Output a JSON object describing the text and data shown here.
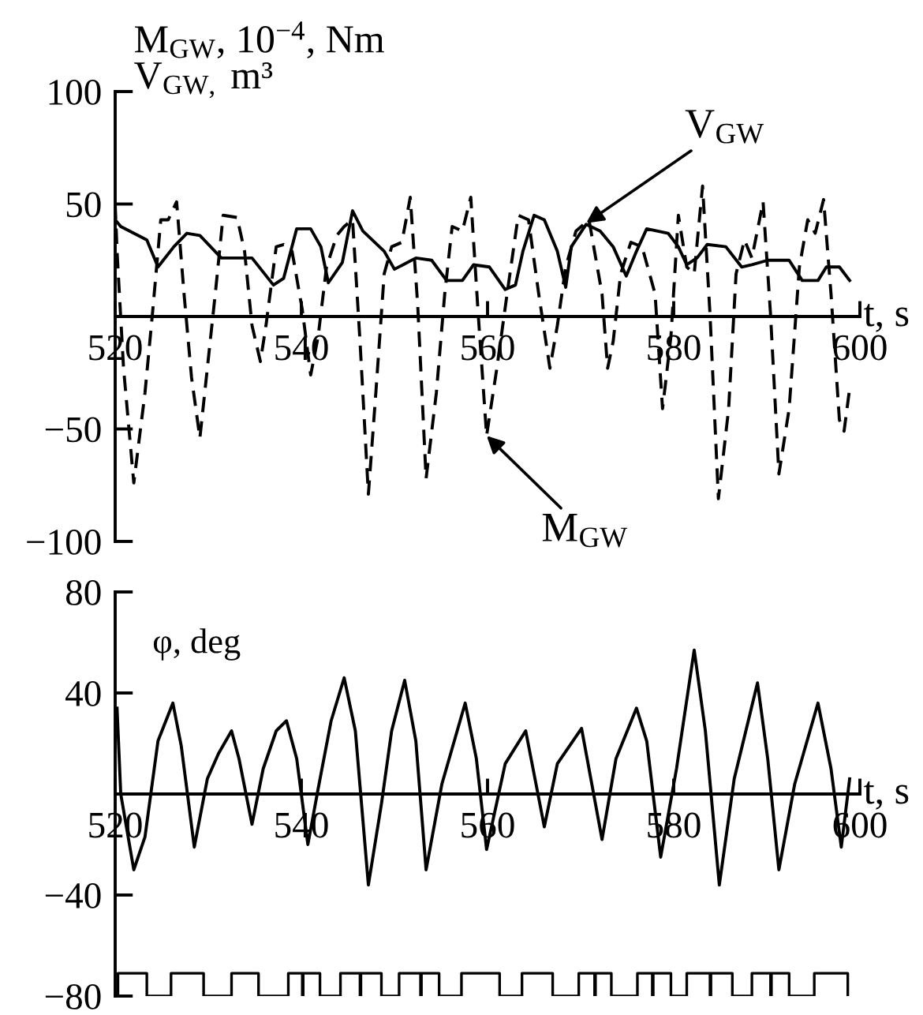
{
  "chart_data": [
    {
      "type": "line",
      "ylabel": "M$_{GW}$, 10$^{−4}$, Nm\nV$_{GW,}$ m³",
      "xlabel": "t, s",
      "xlim": [
        520,
        600
      ],
      "xticks": [
        520,
        540,
        560,
        580,
        600
      ],
      "ylim": [
        -100,
        100
      ],
      "yticks": [
        {
          "value": -100,
          "label": "−100"
        },
        {
          "value": -50,
          "label": "−50"
        },
        50,
        100
      ],
      "grid": false,
      "series": [
        {
          "color": "#000000",
          "line_style": "solid",
          "x": [
            520.0,
            520.6,
            523.4,
            524.6,
            526.3,
            527.7,
            529.1,
            531.4,
            534.7,
            537.0,
            538.1,
            539.5,
            541.0,
            542.1,
            542.9,
            544.4,
            545.5,
            546.6,
            548.9,
            550.0,
            552.3,
            554.0,
            555.6,
            557.3,
            558.5,
            560.2,
            561.9,
            563.0,
            563.8,
            565.0,
            566.1,
            567.5,
            568.4,
            569.0,
            570.6,
            572.1,
            573.5,
            574.9,
            576.0,
            577.1,
            579.4,
            580.5,
            581.4,
            582.5,
            583.6,
            585.6,
            587.3,
            588.4,
            590.1,
            592.4,
            593.8,
            595.5,
            596.4,
            597.8,
            598.9
          ],
          "values": [
            43,
            40,
            34,
            22,
            31,
            37,
            36,
            26,
            26,
            14,
            17,
            39,
            39,
            31,
            15,
            24,
            47,
            38,
            29,
            21,
            26,
            25,
            16,
            16,
            23,
            22,
            12,
            14,
            29,
            45,
            43,
            29,
            13,
            31,
            41,
            38,
            31,
            18,
            29,
            39,
            37,
            31,
            23,
            26,
            32,
            31,
            22,
            23,
            25,
            25,
            16,
            16,
            22,
            22,
            16
          ]
        },
        {
          "color": "#000000",
          "line_style": "dashed",
          "x": [
            520.0,
            520.2,
            520.9,
            522.0,
            523.2,
            524.0,
            524.9,
            525.7,
            526.6,
            527.4,
            528.2,
            529.1,
            529.9,
            530.8,
            531.6,
            533.1,
            533.9,
            534.7,
            535.6,
            536.2,
            537.3,
            538.1,
            539.0,
            540.1,
            541.0,
            541.8,
            542.7,
            543.8,
            544.6,
            545.5,
            546.3,
            547.2,
            548.0,
            548.9,
            549.7,
            550.8,
            551.7,
            552.5,
            553.4,
            554.5,
            555.4,
            556.2,
            557.3,
            558.2,
            559.0,
            559.9,
            561.0,
            562.1,
            563.3,
            564.4,
            565.5,
            566.7,
            567.5,
            568.4,
            569.5,
            570.9,
            572.3,
            572.9,
            573.5,
            574.3,
            575.4,
            576.6,
            578.0,
            578.8,
            579.7,
            580.5,
            581.4,
            582.2,
            583.1,
            583.9,
            584.8,
            585.9,
            586.7,
            587.6,
            588.4,
            589.6,
            590.4,
            591.3,
            592.4,
            593.5,
            594.4,
            595.2,
            596.1,
            596.9,
            597.8,
            598.3,
            598.9
          ],
          "values": [
            50,
            29,
            -23,
            -74,
            -34,
            1,
            43,
            43,
            51,
            10,
            -27,
            -54,
            -23,
            12,
            45,
            44,
            29,
            -4,
            -20,
            -4,
            31,
            32,
            29,
            3,
            -26,
            -9,
            22,
            36,
            40,
            43,
            -11,
            -79,
            -34,
            19,
            31,
            33,
            53,
            5,
            -72,
            -34,
            10,
            40,
            38,
            53,
            1,
            -53,
            -23,
            10,
            45,
            43,
            10,
            -23,
            -4,
            22,
            38,
            43,
            10,
            -23,
            -11,
            19,
            33,
            31,
            10,
            -41,
            -9,
            45,
            22,
            19,
            58,
            1,
            -81,
            -41,
            19,
            34,
            26,
            51,
            1,
            -70,
            -41,
            22,
            43,
            37,
            52,
            10,
            -46,
            -51,
            -32
          ]
        }
      ],
      "annotations": [
        {
          "text": "V$_{GW}$",
          "x": 570.6,
          "y": 41.5
        },
        {
          "text": "M$_{GW}$",
          "x": 559.9,
          "y": -53
        }
      ]
    },
    {
      "type": "line",
      "ylabel": "φ, deg",
      "xlabel": "t, s",
      "xlim": [
        520,
        600
      ],
      "xticks": [
        520,
        540,
        560,
        580,
        600
      ],
      "ylim": [
        -80,
        80
      ],
      "yticks": [
        {
          "value": -80,
          "label": "−80"
        },
        {
          "value": -40,
          "label": "−40"
        },
        40,
        80
      ],
      "grid": false,
      "series": [
        {
          "color": "#000000",
          "line_style": "solid",
          "x": [
            520.2,
            520.6,
            522.0,
            523.2,
            524.6,
            526.2,
            527.1,
            528.5,
            529.9,
            531.1,
            532.5,
            533.3,
            534.7,
            535.9,
            537.3,
            538.4,
            539.5,
            540.7,
            541.8,
            543.2,
            544.6,
            545.8,
            547.2,
            548.6,
            549.7,
            551.1,
            552.3,
            553.4,
            555.1,
            557.6,
            558.8,
            559.9,
            561.9,
            564.1,
            566.1,
            567.5,
            570.1,
            572.3,
            573.8,
            576.0,
            577.1,
            578.6,
            580.3,
            582.2,
            583.4,
            584.9,
            586.5,
            589.0,
            590.1,
            591.3,
            593.0,
            595.5,
            596.9,
            598.0,
            598.9
          ],
          "values": [
            34,
            0,
            -30,
            -17,
            21,
            36,
            19,
            -21,
            6,
            16,
            25,
            14,
            -12,
            10,
            25,
            29,
            14,
            -20,
            2,
            29,
            46,
            25,
            -36,
            -4,
            25,
            45,
            21,
            -30,
            4,
            36,
            14,
            -22,
            12,
            25,
            -13,
            12,
            26,
            -18,
            14,
            34,
            21,
            -25,
            10,
            57,
            25,
            -36,
            6,
            44,
            14,
            -30,
            4,
            36,
            10,
            -21,
            6
          ]
        },
        {
          "type": "step",
          "color": "#000000",
          "line_style": "solid",
          "x": [
            520.0,
            520.3,
            523.4,
            526.0,
            529.5,
            532.5,
            535.4,
            538.6,
            540.1,
            540.2,
            542.0,
            544.2,
            546.3,
            546.4,
            548.6,
            550.5,
            552.8,
            552.9,
            554.8,
            557.2,
            561.3,
            563.7,
            567.0,
            569.8,
            571.5,
            571.6,
            573.3,
            576.1,
            577.7,
            577.8,
            579.7,
            581.4,
            583.9,
            584.0,
            586.3,
            588.4,
            590.4,
            590.5,
            592.4,
            595.1,
            598.7
          ],
          "values": [
            -80,
            -71,
            -80,
            -71,
            -80,
            -71,
            -80,
            -71,
            -80,
            -71,
            -80,
            -71,
            -80,
            -71,
            -80,
            -71,
            -80,
            -71,
            -80,
            -71,
            -80,
            -71,
            -80,
            -71,
            -80,
            -71,
            -80,
            -71,
            -80,
            -71,
            -80,
            -71,
            -80,
            -71,
            -80,
            -71,
            -80,
            -71,
            -80,
            -71,
            -80
          ]
        }
      ]
    }
  ]
}
